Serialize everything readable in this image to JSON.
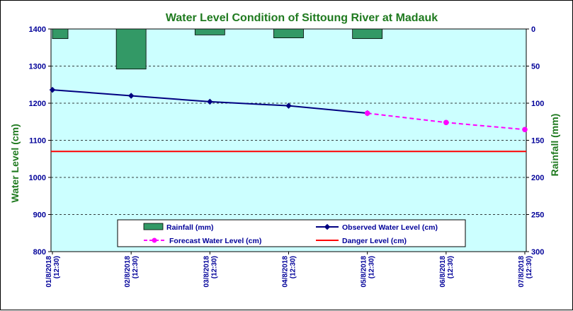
{
  "chart_data": {
    "type": "line",
    "title": "Water Level Condition of Sittoung River at  Madauk",
    "ylabel_left": "Water  Level (cm)",
    "ylabel_right": "Rainfall (mm)",
    "categories": [
      "01/8/2018 (12:30)",
      "02/8/2018 (12:30)",
      "03/8/2018 (12:30)",
      "04/8/2018 (12:30)",
      "05/8/2018 (12:30)",
      "06/8/2018 (12:30)",
      "07/8/2018 (12:30)"
    ],
    "y_left": {
      "min": 800,
      "max": 1400,
      "ticks": [
        800,
        900,
        1000,
        1100,
        1200,
        1300,
        1400
      ]
    },
    "y_right": {
      "min": 0,
      "max": 300,
      "reversed": true,
      "ticks": [
        0,
        50,
        100,
        150,
        200,
        250,
        300
      ]
    },
    "grid": "horizontal-dashed",
    "legend_position": "bottom-center",
    "colors": {
      "plot_bg": "#ccffff",
      "rainfall": "#339966",
      "observed": "#000080",
      "forecast": "#ff00ff",
      "danger": "#ff0000",
      "title": "#1f7a1f",
      "ticks": "#000099"
    },
    "series": [
      {
        "name": "Rainfall (mm)",
        "kind": "bar",
        "axis": "right",
        "values": [
          13,
          54,
          8,
          12,
          13,
          null,
          null
        ]
      },
      {
        "name": "Observed Water Level (cm)",
        "kind": "line",
        "axis": "left",
        "values": [
          1236,
          1220,
          1204,
          1193,
          1173,
          null,
          null
        ]
      },
      {
        "name": "Forecast Water Level (cm)",
        "kind": "line-dashed",
        "axis": "left",
        "values": [
          null,
          null,
          null,
          null,
          1173,
          1148,
          1129
        ]
      },
      {
        "name": "Danger Level (cm)",
        "kind": "hline",
        "axis": "left",
        "value": 1070
      }
    ]
  }
}
